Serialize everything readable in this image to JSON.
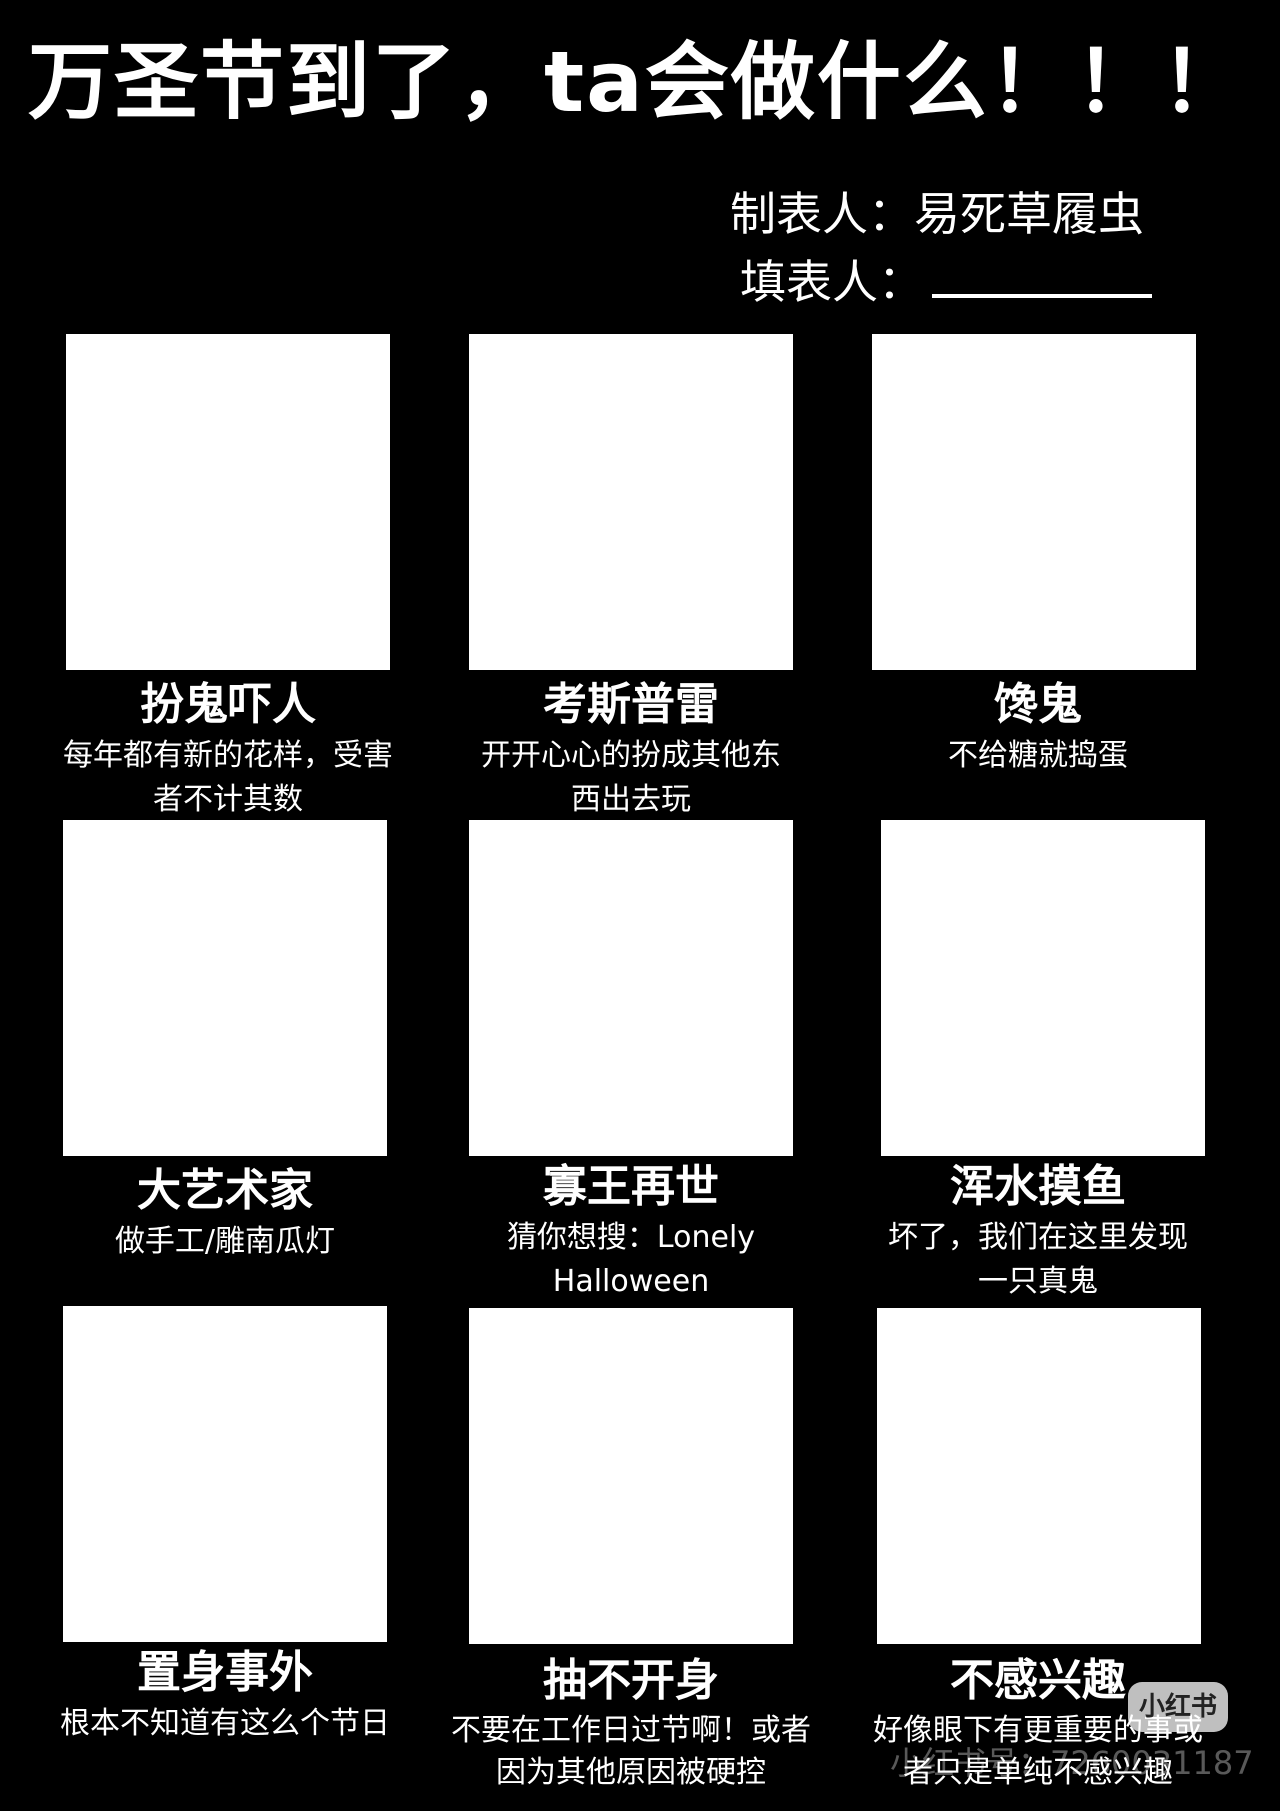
{
  "title": "万圣节到了，ta会做什么！！！",
  "maker_label": "制表人：易死草履虫",
  "filler_label": "填表人：",
  "cells": [
    {
      "name": "扮鬼吓人",
      "desc": "每年都有新的花样，受害者不计其数"
    },
    {
      "name": "考斯普雷",
      "desc": "开开心心的扮成其他东西出去玩"
    },
    {
      "name": "馋鬼",
      "desc": "不给糖就捣蛋"
    },
    {
      "name": "大艺术家",
      "desc": "做手工/雕南瓜灯"
    },
    {
      "name": "寡王再世",
      "desc": "猜你想搜：Lonely Halloween"
    },
    {
      "name": "浑水摸鱼",
      "desc": "坏了，我们在这里发现一只真鬼"
    },
    {
      "name": "置身事外",
      "desc": "根本不知道有这么个节日"
    },
    {
      "name": "抽不开身",
      "desc": "不要在工作日过节啊！或者因为其他原因被硬控"
    },
    {
      "name": "不感兴趣",
      "desc": "好像眼下有更重要的事或者只是单纯不感兴趣"
    }
  ],
  "watermark": {
    "badge": "小红书",
    "text": "小红书号：7260031187"
  }
}
